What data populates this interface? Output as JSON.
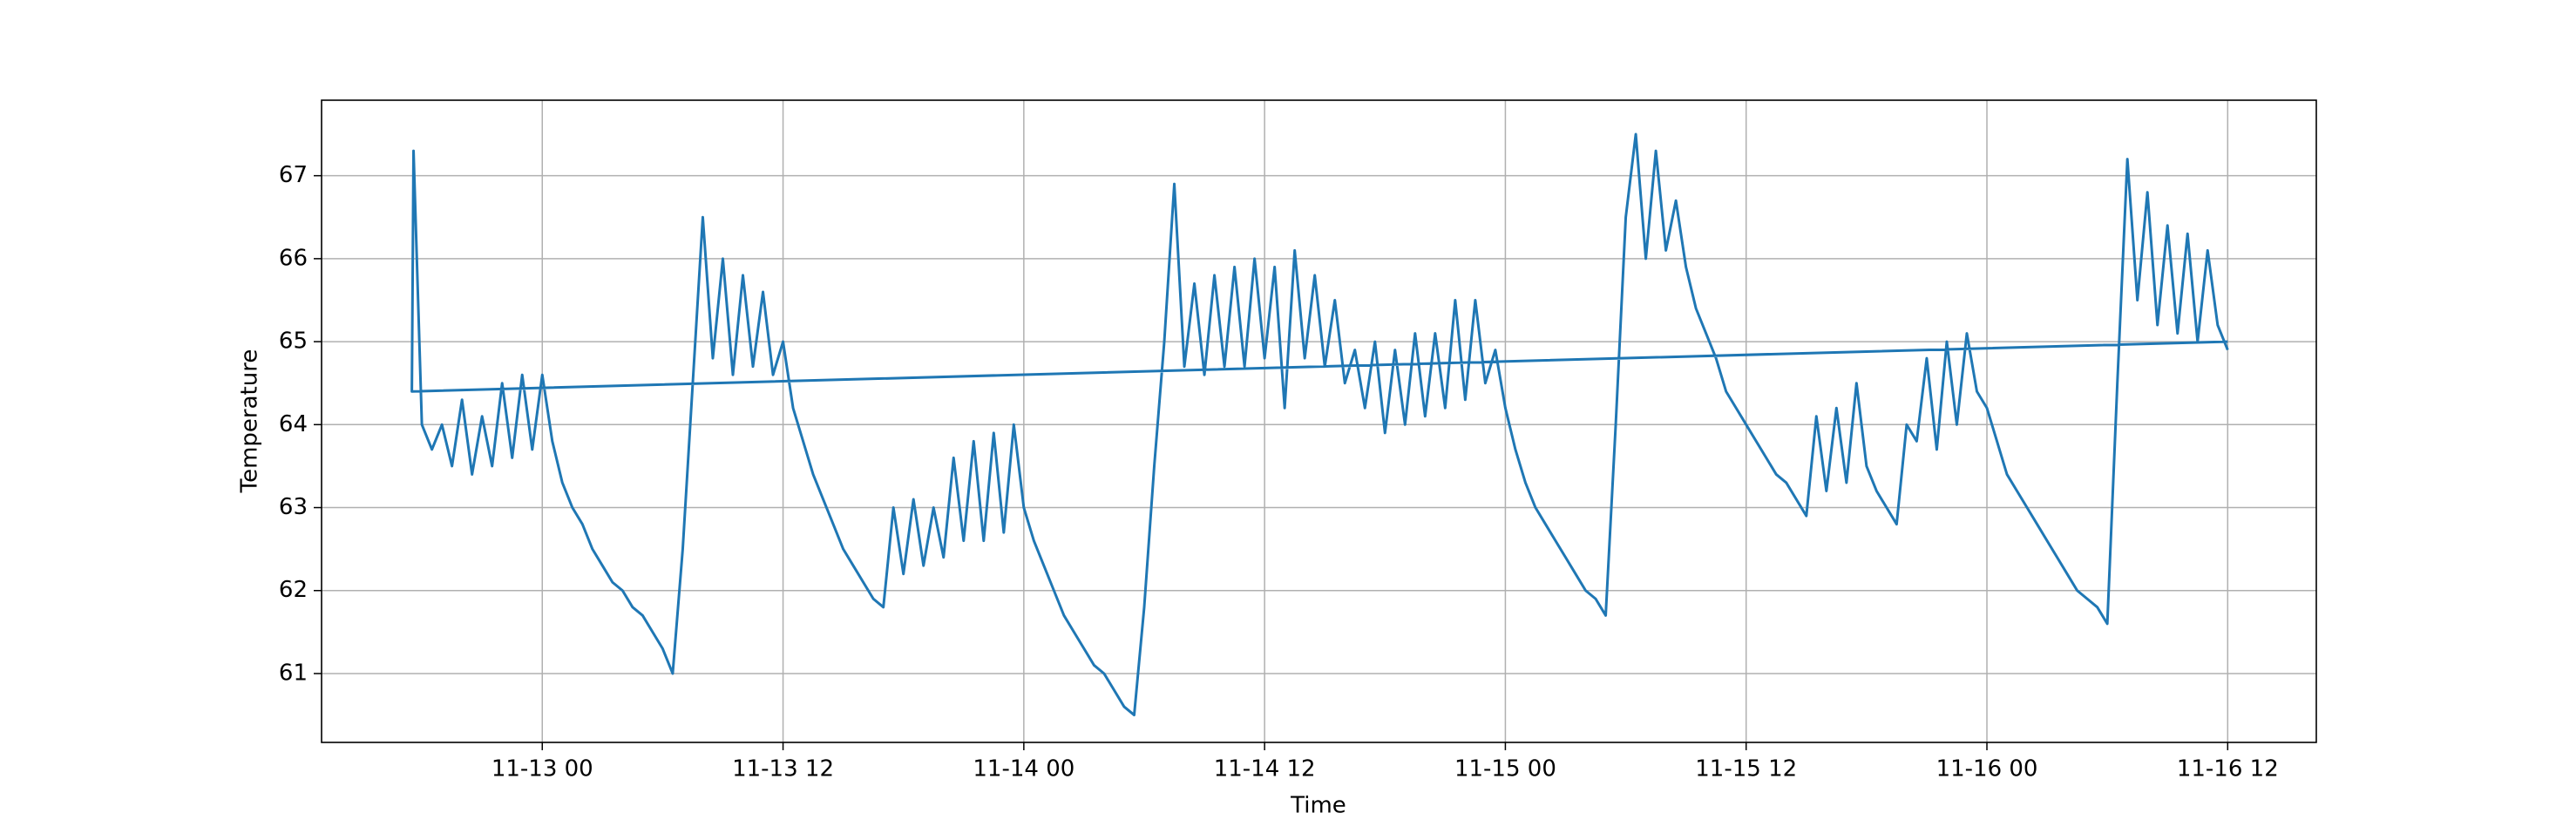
{
  "chart_data": {
    "type": "line",
    "xlabel": "Time",
    "ylabel": "Temperature",
    "color": "#1f77b4",
    "grid": true,
    "xlim": [
      "11-12 13:00",
      "11-16 16:25"
    ],
    "xticks": [
      {
        "value": "11-13 00:00",
        "label": "11-13 00"
      },
      {
        "value": "11-13 12:00",
        "label": "11-13 12"
      },
      {
        "value": "11-14 00:00",
        "label": "11-14 00"
      },
      {
        "value": "11-14 12:00",
        "label": "11-14 12"
      },
      {
        "value": "11-15 00:00",
        "label": "11-15 00"
      },
      {
        "value": "11-15 12:00",
        "label": "11-15 12"
      },
      {
        "value": "11-16 00:00",
        "label": "11-16 00"
      },
      {
        "value": "11-16 12:00",
        "label": "11-16 12"
      }
    ],
    "ylim": [
      60.17,
      67.91
    ],
    "yticks": [
      61,
      62,
      63,
      64,
      65,
      66,
      67
    ],
    "x": [
      "11-16 12:00",
      "11-12 17:30",
      "11-12 17:35",
      "11-12 18:00",
      "11-12 18:30",
      "11-12 19:00",
      "11-12 19:30",
      "11-12 20:00",
      "11-12 20:30",
      "11-12 21:00",
      "11-12 21:30",
      "11-12 22:00",
      "11-12 22:30",
      "11-12 23:00",
      "11-12 23:30",
      "11-13 00:00",
      "11-13 00:30",
      "11-13 01:00",
      "11-13 01:30",
      "11-13 02:00",
      "11-13 02:30",
      "11-13 03:00",
      "11-13 03:30",
      "11-13 04:00",
      "11-13 04:30",
      "11-13 05:00",
      "11-13 05:30",
      "11-13 06:00",
      "11-13 06:30",
      "11-13 07:00",
      "11-13 07:30",
      "11-13 08:00",
      "11-13 08:30",
      "11-13 09:00",
      "11-13 09:30",
      "11-13 10:00",
      "11-13 10:30",
      "11-13 11:00",
      "11-13 11:30",
      "11-13 12:00",
      "11-13 12:30",
      "11-13 13:00",
      "11-13 13:30",
      "11-13 14:00",
      "11-13 14:30",
      "11-13 15:00",
      "11-13 15:30",
      "11-13 16:00",
      "11-13 16:30",
      "11-13 17:00",
      "11-13 17:30",
      "11-13 18:00",
      "11-13 18:30",
      "11-13 19:00",
      "11-13 19:30",
      "11-13 20:00",
      "11-13 20:30",
      "11-13 21:00",
      "11-13 21:30",
      "11-13 22:00",
      "11-13 22:30",
      "11-13 23:00",
      "11-13 23:30",
      "11-14 00:00",
      "11-14 00:30",
      "11-14 01:00",
      "11-14 01:30",
      "11-14 02:00",
      "11-14 02:30",
      "11-14 03:00",
      "11-14 03:30",
      "11-14 04:00",
      "11-14 04:30",
      "11-14 05:00",
      "11-14 05:30",
      "11-14 06:00",
      "11-14 06:30",
      "11-14 07:00",
      "11-14 07:30",
      "11-14 08:00",
      "11-14 08:30",
      "11-14 09:00",
      "11-14 09:30",
      "11-14 10:00",
      "11-14 10:30",
      "11-14 11:00",
      "11-14 11:30",
      "11-14 12:00",
      "11-14 12:30",
      "11-14 13:00",
      "11-14 13:30",
      "11-14 14:00",
      "11-14 14:30",
      "11-14 15:00",
      "11-14 15:30",
      "11-14 16:00",
      "11-14 16:30",
      "11-14 17:00",
      "11-14 17:30",
      "11-14 18:00",
      "11-14 18:30",
      "11-14 19:00",
      "11-14 19:30",
      "11-14 20:00",
      "11-14 20:30",
      "11-14 21:00",
      "11-14 21:30",
      "11-14 22:00",
      "11-14 22:30",
      "11-14 23:00",
      "11-14 23:30",
      "11-15 00:00",
      "11-15 00:30",
      "11-15 01:00",
      "11-15 01:30",
      "11-15 02:00",
      "11-15 02:30",
      "11-15 03:00",
      "11-15 03:30",
      "11-15 04:00",
      "11-15 04:30",
      "11-15 05:00",
      "11-15 05:30",
      "11-15 06:00",
      "11-15 06:30",
      "11-15 07:00",
      "11-15 07:30",
      "11-15 08:00",
      "11-15 08:30",
      "11-15 09:00",
      "11-15 09:30",
      "11-15 10:00",
      "11-15 10:30",
      "11-15 11:00",
      "11-15 11:30",
      "11-15 12:00",
      "11-15 12:30",
      "11-15 13:00",
      "11-15 13:30",
      "11-15 14:00",
      "11-15 14:30",
      "11-15 15:00",
      "11-15 15:30",
      "11-15 16:00",
      "11-15 16:30",
      "11-15 17:00",
      "11-15 17:30",
      "11-15 18:00",
      "11-15 18:30",
      "11-15 19:00",
      "11-15 19:30",
      "11-15 20:00",
      "11-15 20:30",
      "11-15 21:00",
      "11-15 21:30",
      "11-15 22:00",
      "11-15 22:30",
      "11-15 23:00",
      "11-15 23:30",
      "11-16 00:00",
      "11-16 00:30",
      "11-16 01:00",
      "11-16 01:30",
      "11-16 02:00",
      "11-16 02:30",
      "11-16 03:00",
      "11-16 03:30",
      "11-16 04:00",
      "11-16 04:30",
      "11-16 05:00",
      "11-16 05:30",
      "11-16 06:00",
      "11-16 06:30",
      "11-16 07:00",
      "11-16 07:30",
      "11-16 08:00",
      "11-16 08:30",
      "11-16 09:00",
      "11-16 09:30",
      "11-16 10:00",
      "11-16 10:30",
      "11-16 11:00",
      "11-16 11:30",
      "11-16 12:00"
    ],
    "values": [
      65.0,
      64.4,
      67.3,
      64.0,
      63.7,
      64.0,
      63.5,
      64.3,
      63.4,
      64.1,
      63.5,
      64.5,
      63.6,
      64.6,
      63.7,
      64.6,
      63.8,
      63.3,
      63.0,
      62.8,
      62.5,
      62.3,
      62.1,
      62.0,
      61.8,
      61.7,
      61.5,
      61.3,
      61.0,
      62.5,
      64.5,
      66.5,
      64.8,
      66.0,
      64.6,
      65.8,
      64.7,
      65.6,
      64.6,
      65.0,
      64.2,
      63.8,
      63.4,
      63.1,
      62.8,
      62.5,
      62.3,
      62.1,
      61.9,
      61.8,
      63.0,
      62.2,
      63.1,
      62.3,
      63.0,
      62.4,
      63.6,
      62.6,
      63.8,
      62.6,
      63.9,
      62.7,
      64.0,
      63.0,
      62.6,
      62.3,
      62.0,
      61.7,
      61.5,
      61.3,
      61.1,
      61.0,
      60.8,
      60.6,
      60.5,
      61.8,
      63.5,
      65.0,
      66.9,
      64.7,
      65.7,
      64.6,
      65.8,
      64.7,
      65.9,
      64.7,
      66.0,
      64.8,
      65.9,
      64.2,
      66.1,
      64.8,
      65.8,
      64.7,
      65.5,
      64.5,
      64.9,
      64.2,
      65.0,
      63.9,
      64.9,
      64.0,
      65.1,
      64.1,
      65.1,
      64.2,
      65.5,
      64.3,
      65.5,
      64.5,
      64.9,
      64.2,
      63.7,
      63.3,
      63.0,
      62.8,
      62.6,
      62.4,
      62.2,
      62.0,
      61.9,
      61.7,
      64.0,
      66.5,
      67.5,
      66.0,
      67.3,
      66.1,
      66.7,
      65.9,
      65.4,
      65.1,
      64.8,
      64.4,
      64.2,
      64.0,
      63.8,
      63.6,
      63.4,
      63.3,
      63.1,
      62.9,
      64.1,
      63.2,
      64.2,
      63.3,
      64.5,
      63.5,
      63.2,
      63.0,
      62.8,
      64.0,
      63.8,
      64.8,
      63.7,
      65.0,
      64.0,
      65.1,
      64.4,
      64.2,
      63.8,
      63.4,
      63.2,
      63.0,
      62.8,
      62.6,
      62.4,
      62.2,
      62.0,
      61.9,
      61.8,
      61.6,
      64.5,
      67.2,
      65.5,
      66.8,
      65.2,
      66.4,
      65.1,
      66.3,
      65.0,
      66.1,
      65.2,
      64.9
    ]
  }
}
